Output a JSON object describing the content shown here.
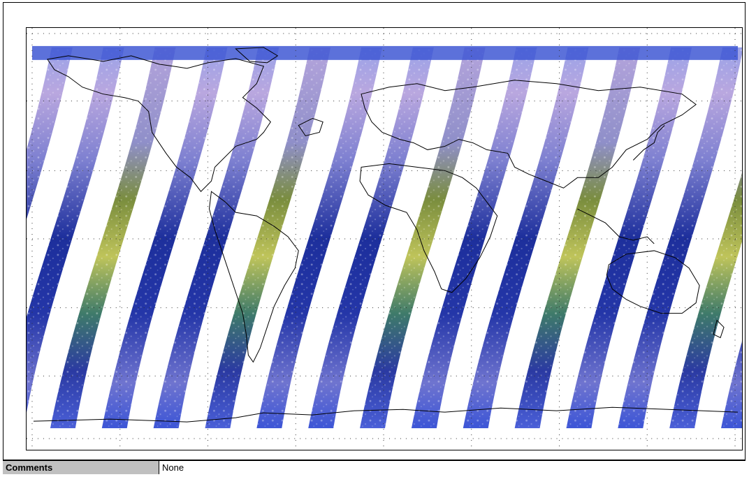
{
  "comments": {
    "label": "Comments",
    "value": "None"
  },
  "map": {
    "projection": "equirectangular",
    "grid": "dotted",
    "swath_count": 15,
    "colors": {
      "ocean_swath": "#1c2f9a",
      "cloud": "#c8b8e6",
      "land_swath": "#7d8f3c",
      "desert": "#c9cc5a",
      "coastline": "#000000",
      "background": "#ffffff"
    }
  }
}
